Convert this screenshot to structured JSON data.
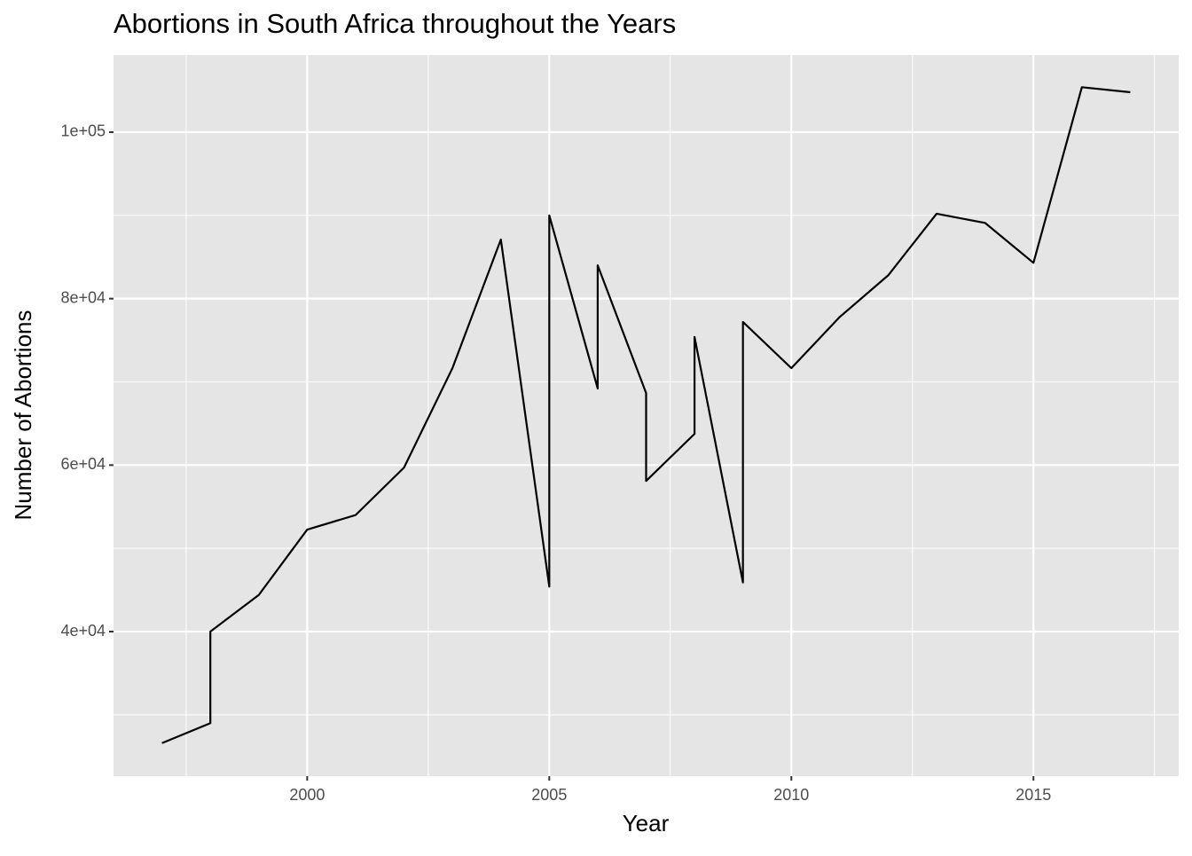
{
  "chart_data": {
    "type": "line",
    "title": "Abortions in South Africa throughout the Years",
    "x_label": "Year",
    "y_label": "Number of Abortions",
    "x": [
      1997,
      1998,
      1998,
      1999,
      2000,
      2001,
      2002,
      2003,
      2004,
      2005,
      2005,
      2006,
      2006,
      2007,
      2007,
      2008,
      2008,
      2009,
      2009,
      2010,
      2011,
      2012,
      2013,
      2014,
      2015,
      2016,
      2017
    ],
    "values": [
      26600,
      29000,
      40000,
      44400,
      52250,
      54000,
      59700,
      71650,
      87100,
      45400,
      90000,
      69200,
      84000,
      68650,
      58100,
      63750,
      75400,
      45900,
      77200,
      71650,
      77800,
      82800,
      90200,
      89100,
      84300,
      105400,
      104800
    ],
    "color": "#000000",
    "xlim": [
      1996,
      2018
    ],
    "xticks": [
      2000,
      2005,
      2010,
      2015
    ],
    "x_minor_ticks": [
      1997.5,
      2002.5,
      2007.5,
      2012.5,
      2017.5
    ],
    "ylim": [
      22630,
      109270
    ],
    "yticks": [
      {
        "value": 40000,
        "label": "4e+04"
      },
      {
        "value": 60000,
        "label": "6e+04"
      },
      {
        "value": 80000,
        "label": "8e+04"
      },
      {
        "value": 100000,
        "label": "1e+05"
      }
    ],
    "y_minor_ticks": [
      30000,
      50000,
      70000,
      90000
    ],
    "grid": true,
    "panel_color": "#e5e5e5"
  }
}
